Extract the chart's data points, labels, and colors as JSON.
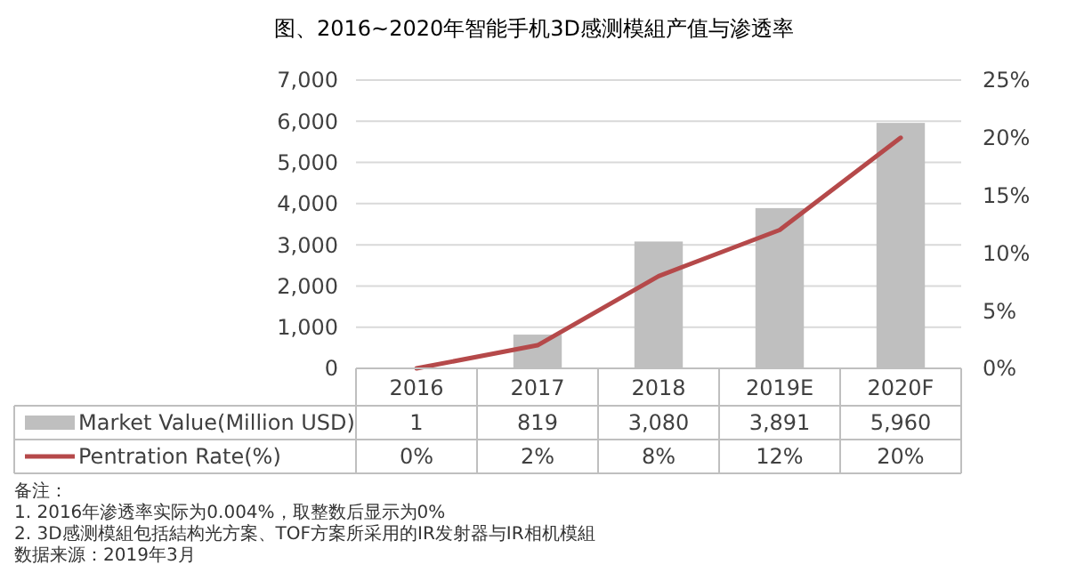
{
  "chart_data": {
    "type": "bar",
    "title": "图、2016~2020年智能手机3D感测模組产值与渗透率",
    "categories": [
      "2016",
      "2017",
      "2018",
      "2019E",
      "2020F"
    ],
    "series": [
      {
        "name": "Market Value(Million USD)",
        "color": "#bfbfbf",
        "values": [
          1,
          819,
          3080,
          3891,
          5960
        ],
        "value_labels": [
          "1",
          "819",
          "3,080",
          "3,891",
          "5,960"
        ]
      },
      {
        "name": "Pentration Rate(%)",
        "type": "line",
        "axis": "y2",
        "color": "#b5494a",
        "values": [
          0,
          2,
          8,
          12,
          20
        ],
        "value_labels": [
          "0%",
          "2%",
          "8%",
          "12%",
          "20%"
        ]
      }
    ],
    "ylim": [
      0,
      7000
    ],
    "yticks": [
      0,
      {
        "value": 1000,
        "label": "1,000"
      },
      {
        "value": 2000,
        "label": "2,000"
      },
      {
        "value": 3000,
        "label": "3,000"
      },
      {
        "value": 4000,
        "label": "4,000"
      },
      {
        "value": 5000,
        "label": "5,000"
      },
      {
        "value": 6000,
        "label": "6,000"
      },
      {
        "value": 7000,
        "label": "7,000"
      }
    ],
    "y2lim": [
      0,
      25
    ],
    "y2ticks": [
      {
        "value": 0,
        "label": "0%"
      },
      {
        "value": 5,
        "label": "5%"
      },
      {
        "value": 10,
        "label": "10%"
      },
      {
        "value": 15,
        "label": "15%"
      },
      {
        "value": 20,
        "label": "20%"
      },
      {
        "value": 25,
        "label": "25%"
      }
    ],
    "grid": "y",
    "legend": "bottom",
    "marker": "none",
    "line_style": "solid",
    "annotations": [
      "备注：",
      "1. 2016年渗透率实际为0.004%，取整数后显示为0%",
      "2. 3D感测模組包括結构光方案、TOF方案所采用的IR发射器与IR相机模組",
      "数据来源：2019年3月"
    ]
  }
}
